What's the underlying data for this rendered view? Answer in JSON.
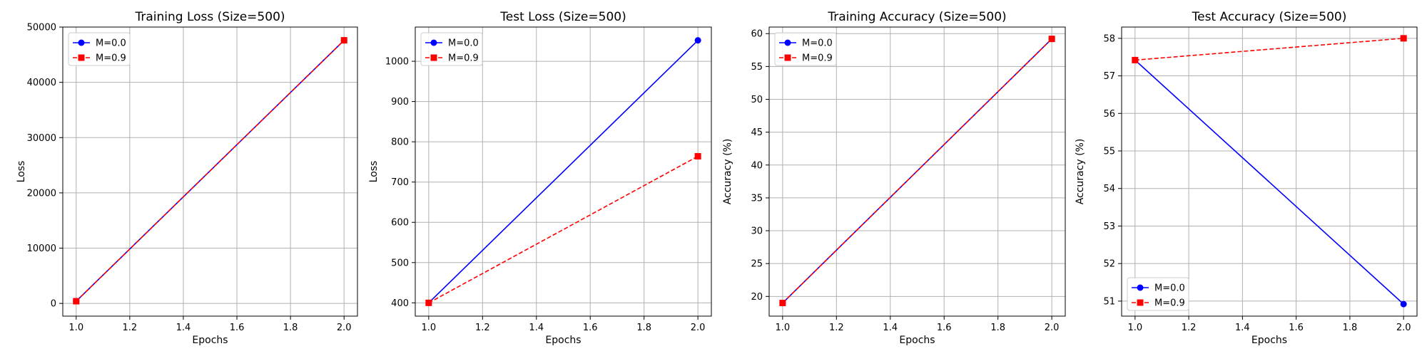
{
  "chart_data": [
    {
      "type": "line",
      "title": "Training Loss (Size=500)",
      "xlabel": "Epochs",
      "ylabel": "Loss",
      "xlim": [
        0.95,
        2.05
      ],
      "ylim": [
        -2300,
        50000
      ],
      "xticks": [
        1.0,
        1.2,
        1.4,
        1.6,
        1.8,
        2.0
      ],
      "xtick_labels": [
        "1.0",
        "1.2",
        "1.4",
        "1.6",
        "1.8",
        "2.0"
      ],
      "yticks": [
        0,
        10000,
        20000,
        30000,
        40000,
        50000
      ],
      "ytick_labels": [
        "0",
        "10000",
        "20000",
        "30000",
        "40000",
        "50000"
      ],
      "grid": true,
      "legend_position": "top-left",
      "series": [
        {
          "name": "M=0.0",
          "color": "#0000ff",
          "linestyle": "solid",
          "marker": "circle",
          "x": [
            1.0,
            2.0
          ],
          "y": [
            400,
            47600
          ]
        },
        {
          "name": "M=0.9",
          "color": "#ff0000",
          "linestyle": "dashed",
          "marker": "square",
          "x": [
            1.0,
            2.0
          ],
          "y": [
            400,
            47600
          ]
        }
      ]
    },
    {
      "type": "line",
      "title": "Test Loss (Size=500)",
      "xlabel": "Epochs",
      "ylabel": "Loss",
      "xlim": [
        0.95,
        2.05
      ],
      "ylim": [
        367,
        1085
      ],
      "xticks": [
        1.0,
        1.2,
        1.4,
        1.6,
        1.8,
        2.0
      ],
      "xtick_labels": [
        "1.0",
        "1.2",
        "1.4",
        "1.6",
        "1.8",
        "2.0"
      ],
      "yticks": [
        400,
        500,
        600,
        700,
        800,
        900,
        1000
      ],
      "ytick_labels": [
        "400",
        "500",
        "600",
        "700",
        "800",
        "900",
        "1000"
      ],
      "grid": true,
      "legend_position": "top-left",
      "series": [
        {
          "name": "M=0.0",
          "color": "#0000ff",
          "linestyle": "solid",
          "marker": "circle",
          "x": [
            1.0,
            2.0
          ],
          "y": [
            400,
            1052
          ]
        },
        {
          "name": "M=0.9",
          "color": "#ff0000",
          "linestyle": "dashed",
          "marker": "square",
          "x": [
            1.0,
            2.0
          ],
          "y": [
            400,
            764
          ]
        }
      ]
    },
    {
      "type": "line",
      "title": "Training Accuracy (Size=500)",
      "xlabel": "Epochs",
      "ylabel": "Accuracy (%)",
      "xlim": [
        0.95,
        2.05
      ],
      "ylim": [
        17.0,
        61.0
      ],
      "xticks": [
        1.0,
        1.2,
        1.4,
        1.6,
        1.8,
        2.0
      ],
      "xtick_labels": [
        "1.0",
        "1.2",
        "1.4",
        "1.6",
        "1.8",
        "2.0"
      ],
      "yticks": [
        20,
        25,
        30,
        35,
        40,
        45,
        50,
        55,
        60
      ],
      "ytick_labels": [
        "20",
        "25",
        "30",
        "35",
        "40",
        "45",
        "50",
        "55",
        "60"
      ],
      "grid": true,
      "legend_position": "top-left",
      "series": [
        {
          "name": "M=0.0",
          "color": "#0000ff",
          "linestyle": "solid",
          "marker": "circle",
          "x": [
            1.0,
            2.0
          ],
          "y": [
            19.0,
            59.2
          ]
        },
        {
          "name": "M=0.9",
          "color": "#ff0000",
          "linestyle": "dashed",
          "marker": "square",
          "x": [
            1.0,
            2.0
          ],
          "y": [
            19.0,
            59.2
          ]
        }
      ]
    },
    {
      "type": "line",
      "title": "Test Accuracy (Size=500)",
      "xlabel": "Epochs",
      "ylabel": "Accuracy (%)",
      "xlim": [
        0.95,
        2.05
      ],
      "ylim": [
        50.6,
        58.3
      ],
      "xticks": [
        1.0,
        1.2,
        1.4,
        1.6,
        1.8,
        2.0
      ],
      "xtick_labels": [
        "1.0",
        "1.2",
        "1.4",
        "1.6",
        "1.8",
        "2.0"
      ],
      "yticks": [
        51,
        52,
        53,
        54,
        55,
        56,
        57,
        58
      ],
      "ytick_labels": [
        "51",
        "52",
        "53",
        "54",
        "55",
        "56",
        "57",
        "58"
      ],
      "grid": true,
      "legend_position": "bottom-left",
      "series": [
        {
          "name": "M=0.0",
          "color": "#0000ff",
          "linestyle": "solid",
          "marker": "circle",
          "x": [
            1.0,
            2.0
          ],
          "y": [
            57.42,
            50.92
          ]
        },
        {
          "name": "M=0.9",
          "color": "#ff0000",
          "linestyle": "dashed",
          "marker": "square",
          "x": [
            1.0,
            2.0
          ],
          "y": [
            57.42,
            58.0
          ]
        }
      ]
    }
  ]
}
